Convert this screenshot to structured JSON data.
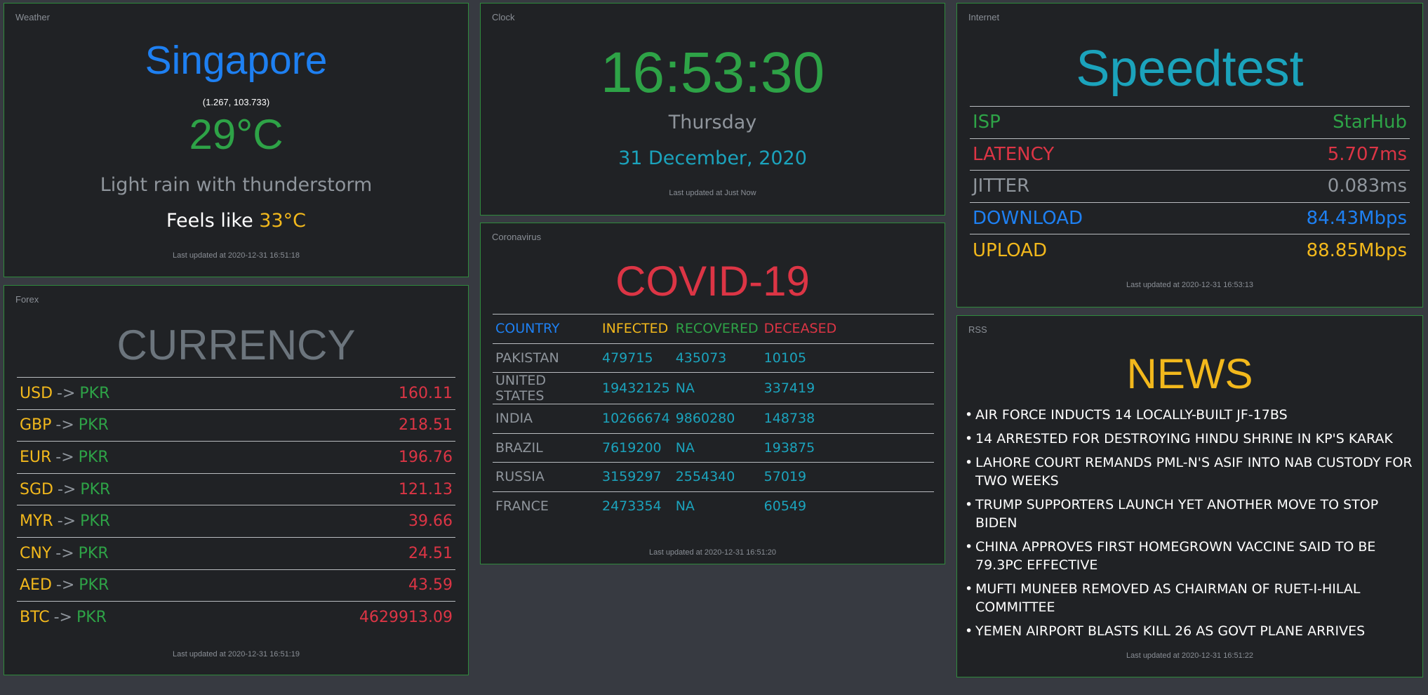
{
  "weather": {
    "label": "Weather",
    "city": "Singapore",
    "coords": "(1.267, 103.733)",
    "temperature": "29°C",
    "description": "Light rain with thunderstorm",
    "feels_like_label": "Feels like",
    "feels_like_value": "33°C",
    "updated": "Last updated at 2020-12-31 16:51:18"
  },
  "clock": {
    "label": "Clock",
    "time": "16:53:30",
    "day": "Thursday",
    "date": "31 December, 2020",
    "updated": "Last updated at Just Now"
  },
  "internet": {
    "label": "Internet",
    "title": "Speedtest",
    "rows": [
      {
        "key": "ISP",
        "value": "StarHub",
        "color": "#2ea347"
      },
      {
        "key": "LATENCY",
        "value": "5.707ms",
        "color": "#dc3545"
      },
      {
        "key": "JITTER",
        "value": "0.083ms",
        "color": "#8f959c"
      },
      {
        "key": "DOWNLOAD",
        "value": "84.43Mbps",
        "color": "#1e80f2"
      },
      {
        "key": "UPLOAD",
        "value": "88.85Mbps",
        "color": "#f2b81c"
      }
    ],
    "updated": "Last updated at 2020-12-31 16:53:13"
  },
  "covid": {
    "label": "Coronavirus",
    "title": "COVID-19",
    "headers": [
      "COUNTRY",
      "INFECTED",
      "RECOVERED",
      "DECEASED"
    ],
    "rows": [
      [
        "PAKISTAN",
        "479715",
        "435073",
        "10105"
      ],
      [
        "UNITED STATES",
        "19432125",
        "NA",
        "337419"
      ],
      [
        "INDIA",
        "10266674",
        "9860280",
        "148738"
      ],
      [
        "BRAZIL",
        "7619200",
        "NA",
        "193875"
      ],
      [
        "RUSSIA",
        "3159297",
        "2554340",
        "57019"
      ],
      [
        "FRANCE",
        "2473354",
        "NA",
        "60549"
      ]
    ],
    "updated": "Last updated at 2020-12-31 16:51:20"
  },
  "forex": {
    "label": "Forex",
    "title": "CURRENCY",
    "arrow": "->",
    "rows": [
      {
        "from": "USD",
        "to": "PKR",
        "rate": "160.11"
      },
      {
        "from": "GBP",
        "to": "PKR",
        "rate": "218.51"
      },
      {
        "from": "EUR",
        "to": "PKR",
        "rate": "196.76"
      },
      {
        "from": "SGD",
        "to": "PKR",
        "rate": "121.13"
      },
      {
        "from": "MYR",
        "to": "PKR",
        "rate": "39.66"
      },
      {
        "from": "CNY",
        "to": "PKR",
        "rate": "24.51"
      },
      {
        "from": "AED",
        "to": "PKR",
        "rate": "43.59"
      },
      {
        "from": "BTC",
        "to": "PKR",
        "rate": "4629913.09"
      }
    ],
    "updated": "Last updated at 2020-12-31 16:51:19"
  },
  "rss": {
    "label": "RSS",
    "title": "NEWS",
    "items": [
      "AIR FORCE INDUCTS 14 LOCALLY-BUILT JF-17BS",
      "14 ARRESTED FOR DESTROYING HINDU SHRINE IN KP'S KARAK",
      "LAHORE COURT REMANDS PML-N'S ASIF INTO NAB CUSTODY FOR TWO WEEKS",
      "TRUMP SUPPORTERS LAUNCH YET ANOTHER MOVE TO STOP BIDEN",
      "CHINA APPROVES FIRST HOMEGROWN VACCINE SAID TO BE 79.3PC EFFECTIVE",
      "MUFTI MUNEEB REMOVED AS CHAIRMAN OF RUET-I-HILAL COMMITTEE",
      "YEMEN AIRPORT BLASTS KILL 26 AS GOVT PLANE ARRIVES"
    ],
    "updated": "Last updated at 2020-12-31 16:51:22"
  }
}
